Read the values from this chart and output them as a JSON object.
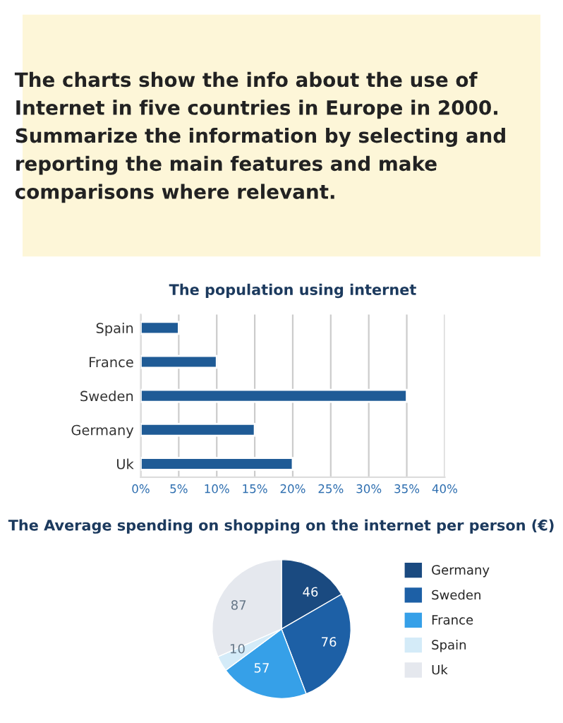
{
  "chart_data": [
    {
      "type": "other",
      "title": "The charts show the info about the use of Internet in five countries in Europe in 2000. Summarize the information by selecting and reporting the main features and make comparisons where relevant."
    },
    {
      "type": "bar",
      "orientation": "horizontal",
      "title": "The population using internet",
      "categories": [
        "Spain",
        "France",
        "Sweden",
        "Germany",
        "Uk"
      ],
      "values": [
        5,
        10,
        35,
        15,
        20
      ],
      "color": "#1f5b96",
      "xlim": [
        0,
        40
      ],
      "xticks": [
        {
          "value": 0,
          "label": "0%"
        },
        {
          "value": 5,
          "label": "5%"
        },
        {
          "value": 10,
          "label": "10%"
        },
        {
          "value": 15,
          "label": "15%"
        },
        {
          "value": 20,
          "label": "20%"
        },
        {
          "value": 25,
          "label": "25%"
        },
        {
          "value": 30,
          "label": "30%"
        },
        {
          "value": 35,
          "label": "35%"
        },
        {
          "value": 40,
          "label": "40%"
        }
      ],
      "grid": "x"
    },
    {
      "type": "pie",
      "title": "The Average spending on shopping on the internet per person (€)",
      "categories": [
        "Germany",
        "Sweden",
        "France",
        "Spain",
        "Uk"
      ],
      "values": [
        46,
        76,
        57,
        10,
        87
      ],
      "colors": [
        "#1a4a80",
        "#1d60a6",
        "#36a0e8",
        "#d4ebf8",
        "#e5e8ee"
      ],
      "data_labels": true,
      "legend": "right"
    }
  ]
}
